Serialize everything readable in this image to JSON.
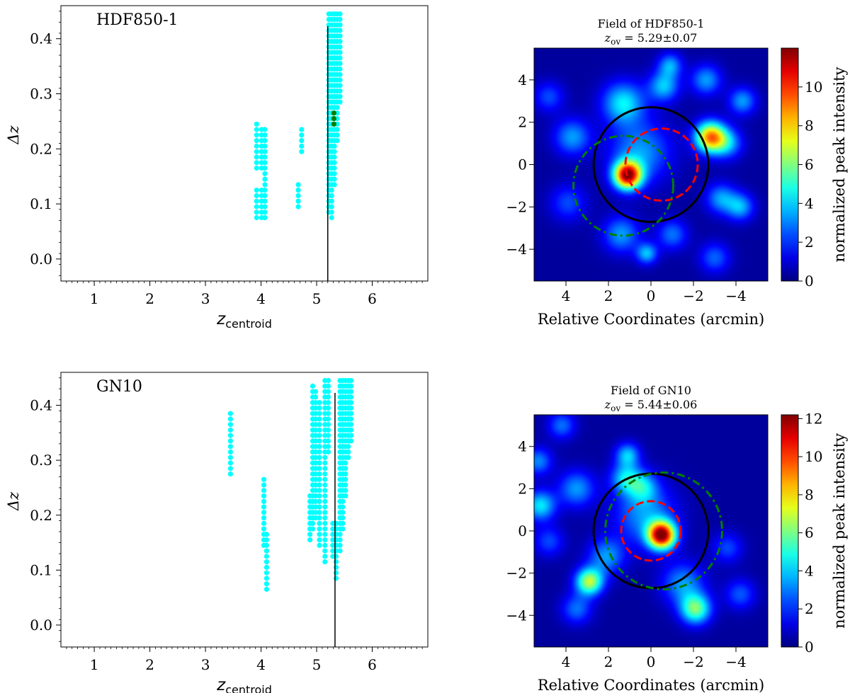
{
  "chart_data": [
    {
      "type": "scatter",
      "annotation": "HDF850-1",
      "xlabel": "z",
      "xlabel_sub": "centroid",
      "ylabel": "Δz",
      "xlim": [
        0.4,
        7.0
      ],
      "ylim": [
        -0.04,
        0.46
      ],
      "xticks": [
        "1",
        "2",
        "3",
        "4",
        "5",
        "6"
      ],
      "yticks": [
        "0.0",
        "0.1",
        "0.2",
        "0.3",
        "0.4"
      ],
      "vline": 5.2,
      "marker_color": "#00ffff",
      "highlight_color": "#008000",
      "columns": [
        {
          "x": 3.92,
          "y0": 0.075,
          "y1": 0.125
        },
        {
          "x": 3.92,
          "y0": 0.165,
          "y1": 0.245
        },
        {
          "x": 4.01,
          "y0": 0.075,
          "y1": 0.125
        },
        {
          "x": 4.01,
          "y0": 0.165,
          "y1": 0.235
        },
        {
          "x": 4.07,
          "y0": 0.075,
          "y1": 0.235
        },
        {
          "x": 4.67,
          "y0": 0.095,
          "y1": 0.135
        },
        {
          "x": 4.73,
          "y0": 0.195,
          "y1": 0.235
        },
        {
          "x": 5.22,
          "y0": 0.085,
          "y1": 0.445
        },
        {
          "x": 5.27,
          "y0": 0.075,
          "y1": 0.445
        },
        {
          "x": 5.32,
          "y0": 0.135,
          "y1": 0.445
        },
        {
          "x": 5.37,
          "y0": 0.215,
          "y1": 0.445
        },
        {
          "x": 5.42,
          "y0": 0.285,
          "y1": 0.445
        }
      ],
      "highlight_points": [
        [
          5.31,
          0.245
        ],
        [
          5.31,
          0.255
        ],
        [
          5.31,
          0.265
        ]
      ]
    },
    {
      "type": "heatmap",
      "title": "Field of HDF850-1",
      "subtitle_prefix": "z",
      "subtitle_sub": "ov",
      "subtitle_value": " = 5.29±0.07",
      "xlabel": "Relative Coordinates (arcmin)",
      "colorbar_label": "normalized peak intensity",
      "xlim": [
        5.5,
        -5.5
      ],
      "ylim": [
        -5.5,
        5.5
      ],
      "xticks": [
        "4",
        "2",
        "0",
        "−2",
        "−4"
      ],
      "yticks": [
        "4",
        "2",
        "0",
        "−2",
        "−4"
      ],
      "cbar_ticks": [
        "0",
        "2",
        "4",
        "6",
        "8",
        "10"
      ],
      "cbar_max": 12,
      "blobs": [
        {
          "x": 1.1,
          "y": -0.5,
          "a": 11.0,
          "s": 0.45
        },
        {
          "x": 0.5,
          "y": 0.6,
          "a": 3.0,
          "s": 1.0
        },
        {
          "x": -2.8,
          "y": 1.3,
          "a": 8.5,
          "s": 0.5
        },
        {
          "x": 1.3,
          "y": 2.9,
          "a": 4.0,
          "s": 0.7
        },
        {
          "x": -0.6,
          "y": 3.7,
          "a": 3.5,
          "s": 0.5
        },
        {
          "x": -0.9,
          "y": 4.7,
          "a": 3.0,
          "s": 0.4
        },
        {
          "x": -2.6,
          "y": 4.0,
          "a": 3.0,
          "s": 0.5
        },
        {
          "x": -4.3,
          "y": 3.0,
          "a": 3.0,
          "s": 0.45
        },
        {
          "x": -3.6,
          "y": 1.0,
          "a": 3.0,
          "s": 0.5
        },
        {
          "x": -3.3,
          "y": -1.6,
          "a": 3.0,
          "s": 0.5
        },
        {
          "x": -4.2,
          "y": -2.0,
          "a": 3.2,
          "s": 0.45
        },
        {
          "x": 3.7,
          "y": 1.3,
          "a": 3.0,
          "s": 0.6
        },
        {
          "x": 4.8,
          "y": 3.2,
          "a": 2.0,
          "s": 0.5
        },
        {
          "x": 1.4,
          "y": -3.3,
          "a": 3.0,
          "s": 0.6
        },
        {
          "x": 0.2,
          "y": -4.2,
          "a": 3.4,
          "s": 0.35
        },
        {
          "x": -1.0,
          "y": -3.3,
          "a": 2.5,
          "s": 0.5
        },
        {
          "x": -3.0,
          "y": -4.4,
          "a": 2.3,
          "s": 0.5
        },
        {
          "x": 3.9,
          "y": -1.8,
          "a": 2.0,
          "s": 0.6
        }
      ],
      "circles": [
        {
          "cx": 0,
          "cy": 0,
          "r": 2.7,
          "style": "solid",
          "color": "#000000"
        },
        {
          "cx": -0.5,
          "cy": 0,
          "r": 1.7,
          "style": "dashed",
          "color": "#ff0000"
        },
        {
          "cx": 1.3,
          "cy": -1.0,
          "r": 2.35,
          "style": "dashdot",
          "color": "#008000"
        }
      ]
    },
    {
      "type": "scatter",
      "annotation": "GN10",
      "xlabel": "z",
      "xlabel_sub": "centroid",
      "ylabel": "Δz",
      "xlim": [
        0.4,
        7.0
      ],
      "ylim": [
        -0.04,
        0.46
      ],
      "xticks": [
        "1",
        "2",
        "3",
        "4",
        "5",
        "6"
      ],
      "yticks": [
        "0.0",
        "0.1",
        "0.2",
        "0.3",
        "0.4"
      ],
      "vline": 5.33,
      "marker_color": "#00ffff",
      "highlight_color": "#008000",
      "columns": [
        {
          "x": 3.45,
          "y0": 0.275,
          "y1": 0.385
        },
        {
          "x": 4.05,
          "y0": 0.145,
          "y1": 0.265
        },
        {
          "x": 4.1,
          "y0": 0.065,
          "y1": 0.165
        },
        {
          "x": 4.88,
          "y0": 0.155,
          "y1": 0.235
        },
        {
          "x": 4.93,
          "y0": 0.175,
          "y1": 0.435
        },
        {
          "x": 4.98,
          "y0": 0.195,
          "y1": 0.425
        },
        {
          "x": 5.05,
          "y0": 0.145,
          "y1": 0.405
        },
        {
          "x": 5.15,
          "y0": 0.115,
          "y1": 0.445
        },
        {
          "x": 5.21,
          "y0": 0.315,
          "y1": 0.445
        },
        {
          "x": 5.29,
          "y0": 0.125,
          "y1": 0.185
        },
        {
          "x": 5.35,
          "y0": 0.085,
          "y1": 0.185
        },
        {
          "x": 5.42,
          "y0": 0.135,
          "y1": 0.445
        },
        {
          "x": 5.47,
          "y0": 0.175,
          "y1": 0.445
        },
        {
          "x": 5.52,
          "y0": 0.235,
          "y1": 0.445
        },
        {
          "x": 5.57,
          "y0": 0.305,
          "y1": 0.445
        },
        {
          "x": 5.62,
          "y0": 0.335,
          "y1": 0.445
        }
      ],
      "highlight_points": []
    },
    {
      "type": "heatmap",
      "title": "Field of GN10",
      "subtitle_prefix": "z",
      "subtitle_sub": "ov",
      "subtitle_value": " = 5.44±0.06",
      "xlabel": "Relative Coordinates (arcmin)",
      "colorbar_label": "normalized peak intensity",
      "xlim": [
        5.5,
        -5.5
      ],
      "ylim": [
        -5.5,
        5.5
      ],
      "xticks": [
        "4",
        "2",
        "0",
        "−2",
        "−4"
      ],
      "yticks": [
        "4",
        "2",
        "0",
        "−2",
        "−4"
      ],
      "cbar_ticks": [
        "0",
        "2",
        "4",
        "6",
        "8",
        "10",
        "12"
      ],
      "cbar_max": 12.2,
      "blobs": [
        {
          "x": -0.5,
          "y": -0.2,
          "a": 11.5,
          "s": 0.45
        },
        {
          "x": 0.3,
          "y": 0.8,
          "a": 3.0,
          "s": 1.0
        },
        {
          "x": 2.9,
          "y": -2.4,
          "a": 6.5,
          "s": 0.45
        },
        {
          "x": -2.1,
          "y": -3.7,
          "a": 5.5,
          "s": 0.5
        },
        {
          "x": 5.2,
          "y": 1.2,
          "a": 4.0,
          "s": 0.5
        },
        {
          "x": 3.5,
          "y": 2.0,
          "a": 3.0,
          "s": 0.6
        },
        {
          "x": 1.2,
          "y": 2.5,
          "a": 3.5,
          "s": 0.5
        },
        {
          "x": 1.1,
          "y": 3.6,
          "a": 3.5,
          "s": 0.4
        },
        {
          "x": 0.4,
          "y": 2.1,
          "a": 3.0,
          "s": 0.5
        },
        {
          "x": 4.2,
          "y": 5.0,
          "a": 2.5,
          "s": 0.45
        },
        {
          "x": 5.3,
          "y": 3.3,
          "a": 2.8,
          "s": 0.45
        },
        {
          "x": 2.1,
          "y": -1.2,
          "a": 3.0,
          "s": 0.6
        },
        {
          "x": -1.5,
          "y": -2.5,
          "a": 3.0,
          "s": 0.7
        },
        {
          "x": -4.2,
          "y": -3.0,
          "a": 2.2,
          "s": 0.5
        },
        {
          "x": -3.6,
          "y": -0.8,
          "a": 2.0,
          "s": 0.5
        },
        {
          "x": 3.5,
          "y": -3.7,
          "a": 2.5,
          "s": 0.5
        },
        {
          "x": 4.8,
          "y": -0.5,
          "a": 2.0,
          "s": 0.5
        }
      ],
      "circles": [
        {
          "cx": 0,
          "cy": 0,
          "r": 2.7,
          "style": "solid",
          "color": "#000000"
        },
        {
          "cx": 0,
          "cy": 0,
          "r": 1.4,
          "style": "dashed",
          "color": "#ff0000"
        },
        {
          "cx": -0.6,
          "cy": 0.0,
          "r": 2.75,
          "style": "dashdot",
          "color": "#008000"
        }
      ]
    }
  ]
}
